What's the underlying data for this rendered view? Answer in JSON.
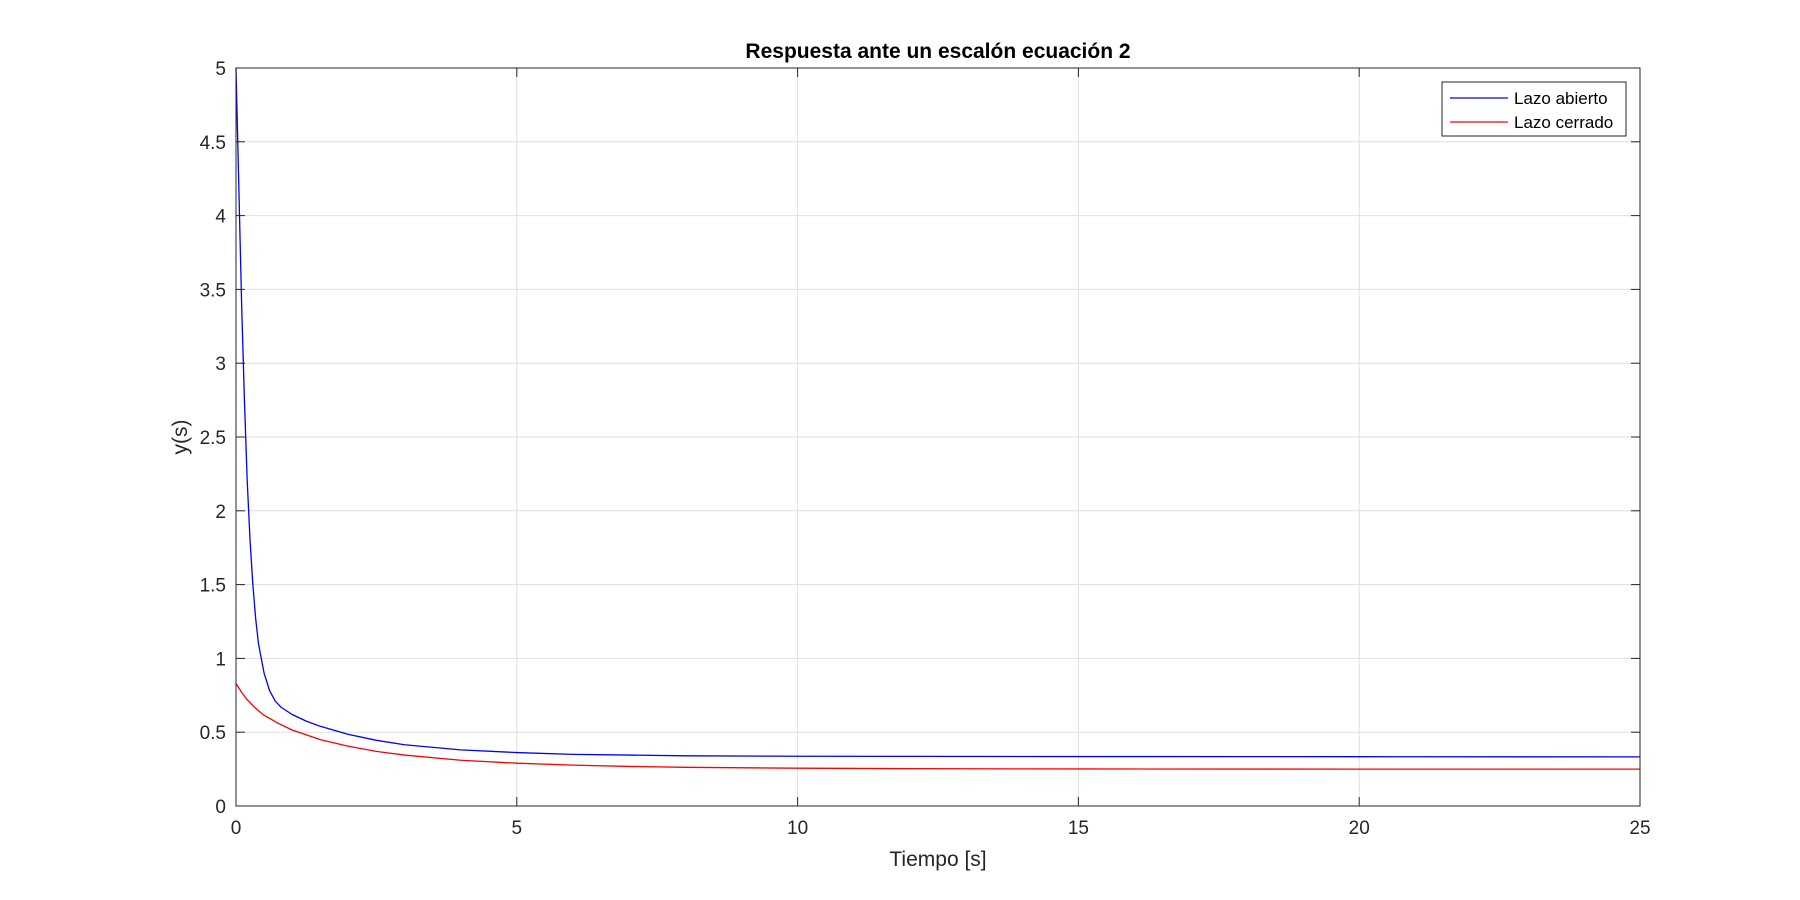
{
  "chart_data": {
    "type": "line",
    "title": "Respuesta ante un escalón ecuación 2",
    "xlabel": "Tiempo [s]",
    "ylabel": "y(s)",
    "xlim": [
      0,
      25
    ],
    "ylim": [
      0,
      5
    ],
    "xticks": [
      0,
      5,
      10,
      15,
      20,
      25
    ],
    "yticks": [
      0,
      0.5,
      1,
      1.5,
      2,
      2.5,
      3,
      3.5,
      4,
      4.5,
      5
    ],
    "xtick_labels": [
      "0",
      "5",
      "10",
      "15",
      "20",
      "25"
    ],
    "ytick_labels": [
      "0",
      "0.5",
      "1",
      "1.5",
      "2",
      "2.5",
      "3",
      "3.5",
      "4",
      "4.5",
      "5"
    ],
    "grid": true,
    "legend_position": "top-right",
    "series": [
      {
        "name": "Lazo abierto",
        "color": "#0000ff",
        "x": [
          0,
          0.05,
          0.1,
          0.15,
          0.2,
          0.25,
          0.3,
          0.35,
          0.4,
          0.5,
          0.6,
          0.7,
          0.8,
          1.0,
          1.25,
          1.5,
          2.0,
          2.5,
          3.0,
          4.0,
          5.0,
          6.0,
          7.0,
          8.0,
          10.0,
          12.0,
          15.0,
          20.0,
          25.0
        ],
        "values": [
          5.0,
          4.2,
          3.4,
          2.75,
          2.2,
          1.8,
          1.5,
          1.27,
          1.1,
          0.9,
          0.78,
          0.71,
          0.67,
          0.62,
          0.575,
          0.54,
          0.485,
          0.445,
          0.415,
          0.38,
          0.362,
          0.35,
          0.345,
          0.34,
          0.337,
          0.336,
          0.335,
          0.334,
          0.333
        ]
      },
      {
        "name": "Lazo cerrado",
        "color": "#ff0000",
        "x": [
          0,
          0.1,
          0.2,
          0.3,
          0.4,
          0.5,
          0.75,
          1.0,
          1.5,
          2.0,
          2.5,
          3.0,
          4.0,
          5.0,
          6.0,
          7.0,
          8.0,
          10.0,
          12.0,
          15.0,
          20.0,
          25.0
        ],
        "values": [
          0.83,
          0.77,
          0.72,
          0.68,
          0.645,
          0.615,
          0.56,
          0.515,
          0.45,
          0.405,
          0.37,
          0.345,
          0.31,
          0.29,
          0.277,
          0.268,
          0.262,
          0.256,
          0.253,
          0.251,
          0.25,
          0.25
        ]
      }
    ]
  }
}
